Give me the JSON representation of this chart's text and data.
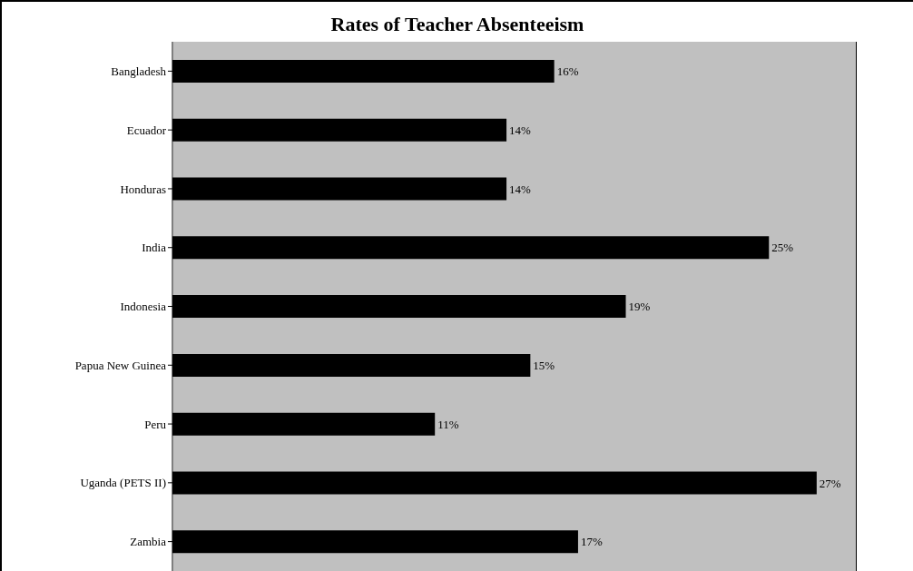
{
  "chart_data": {
    "type": "bar",
    "orientation": "horizontal",
    "title": "Rates of Teacher Absenteeism",
    "categories": [
      "Bangladesh",
      "Ecuador",
      "Honduras",
      "India",
      "Indonesia",
      "Papua New Guinea",
      "Peru",
      "Uganda (PETS II)",
      "Zambia"
    ],
    "values": [
      16,
      14,
      14,
      25,
      19,
      15,
      11,
      27,
      17
    ],
    "value_labels": [
      "16%",
      "14%",
      "14%",
      "25%",
      "19%",
      "15%",
      "11%",
      "27%",
      "17%"
    ],
    "color": "#000000",
    "grid": false
  }
}
